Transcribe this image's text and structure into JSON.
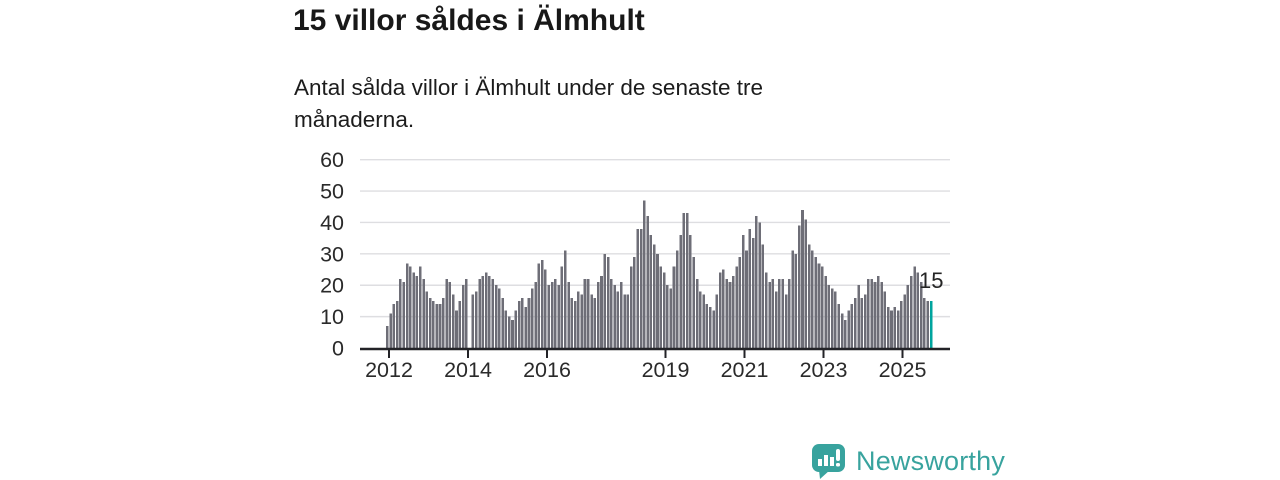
{
  "header": {
    "title": "15 villor såldes i Älmhult",
    "subtitle": "Antal sålda villor i Älmhult under de senaste tre månaderna."
  },
  "footer": {
    "brand": "Newsworthy",
    "logo_icon": "bar-chart-speech-bubble-icon",
    "brand_color": "#38a39e"
  },
  "chart_data": {
    "type": "bar",
    "title": "15 villor såldes i Älmhult",
    "subtitle": "Antal sålda villor i Älmhult under de senaste tre månaderna.",
    "frequency": "monthly",
    "start_month": "2012-01",
    "values": [
      7,
      11,
      14,
      15,
      22,
      21,
      27,
      26,
      24,
      23,
      26,
      22,
      18,
      16,
      15,
      14,
      14,
      16,
      22,
      21,
      17,
      12,
      15,
      20,
      22,
      0,
      17,
      18,
      22,
      23,
      24,
      23,
      22,
      20,
      19,
      16,
      12,
      10,
      9,
      12,
      15,
      16,
      13,
      16,
      19,
      21,
      27,
      28,
      25,
      20,
      21,
      22,
      20,
      26,
      31,
      21,
      16,
      15,
      18,
      17,
      22,
      22,
      17,
      16,
      21,
      23,
      30,
      29,
      22,
      20,
      18,
      21,
      17,
      17,
      26,
      29,
      38,
      38,
      47,
      42,
      36,
      33,
      30,
      26,
      24,
      20,
      19,
      26,
      31,
      36,
      43,
      43,
      36,
      29,
      22,
      18,
      17,
      14,
      13,
      12,
      17,
      24,
      25,
      22,
      21,
      23,
      26,
      29,
      36,
      31,
      38,
      35,
      42,
      40,
      33,
      24,
      21,
      22,
      18,
      22,
      22,
      17,
      22,
      31,
      30,
      39,
      44,
      41,
      33,
      31,
      29,
      27,
      26,
      23,
      20,
      19,
      18,
      14,
      11,
      9,
      12,
      14,
      16,
      20,
      16,
      17,
      22,
      22,
      21,
      23,
      21,
      18,
      13,
      12,
      13,
      12,
      15,
      17,
      20,
      23,
      26,
      24,
      21,
      16,
      15,
      15
    ],
    "highlight": {
      "index": 165,
      "value": 15,
      "label": "15",
      "color": "#00a49e"
    },
    "bar_color": "#6e6e77",
    "x_ticks": [
      2012,
      2014,
      2016,
      2019,
      2021,
      2023,
      2025
    ],
    "y_ticks": [
      0,
      10,
      20,
      30,
      40,
      50,
      60
    ],
    "ylim": [
      0,
      60
    ],
    "grid": "horizontal",
    "axis_color": "#232327",
    "grid_color": "#dedee1",
    "label_color": "#2a2a2a"
  }
}
